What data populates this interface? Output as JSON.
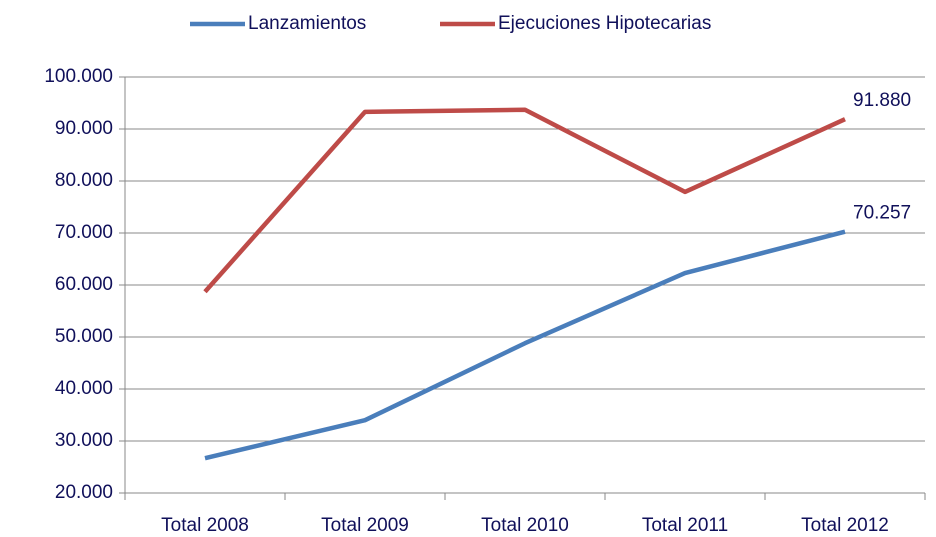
{
  "chart_data": {
    "type": "line",
    "categories": [
      "Total 2008",
      "Total 2009",
      "Total 2010",
      "Total 2011",
      "Total 2012"
    ],
    "series": [
      {
        "name": "Lanzamientos",
        "color": "#4a7ebb",
        "values": [
          26700,
          34000,
          48800,
          62300,
          70257
        ],
        "value_labels": [
          null,
          null,
          null,
          null,
          "70.257"
        ]
      },
      {
        "name": "Ejecuciones Hipotecarias",
        "color": "#be4b48",
        "values": [
          58700,
          93300,
          93700,
          77900,
          91880
        ],
        "value_labels": [
          null,
          null,
          null,
          null,
          "91.880"
        ]
      }
    ],
    "ylim": [
      20000,
      100000
    ],
    "yticks": [
      {
        "value": 20000,
        "label": "20.000"
      },
      {
        "value": 30000,
        "label": "30.000"
      },
      {
        "value": 40000,
        "label": "40.000"
      },
      {
        "value": 50000,
        "label": "50.000"
      },
      {
        "value": 60000,
        "label": "60.000"
      },
      {
        "value": 70000,
        "label": "70.000"
      },
      {
        "value": 80000,
        "label": "80.000"
      },
      {
        "value": 90000,
        "label": "90.000"
      },
      {
        "value": 100000,
        "label": "100.000"
      }
    ],
    "grid": true,
    "legend": "top"
  }
}
